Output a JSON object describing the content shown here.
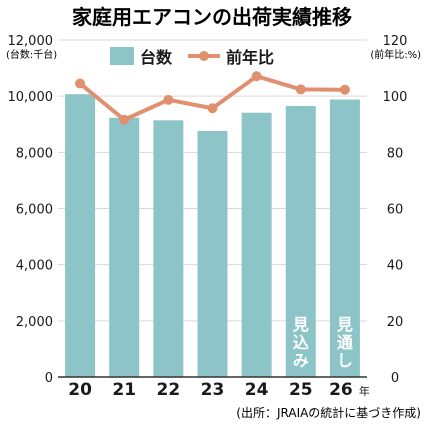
{
  "chart_data": {
    "type": "bar",
    "title": "家庭用エアコンの出荷実績推移",
    "categories": [
      "20",
      "21",
      "22",
      "23",
      "24",
      "25",
      "26"
    ],
    "category_suffix_last": "年",
    "series": [
      {
        "name": "台数",
        "kind": "bar",
        "axis": "left",
        "values": [
          10070,
          9230,
          9140,
          8760,
          9410,
          9650,
          9880
        ]
      },
      {
        "name": "前年比",
        "kind": "line",
        "axis": "right",
        "values": [
          104.5,
          91.6,
          98.7,
          95.7,
          107.1,
          102.4,
          102.3
        ]
      }
    ],
    "y_left": {
      "unit_label": "(台数:千台)",
      "ylim": [
        0,
        12000
      ],
      "ticks": [
        "0",
        "2,000",
        "4,000",
        "6,000",
        "8,000",
        "10,000",
        "12,000"
      ]
    },
    "y_right": {
      "unit_label": "(前年比:%)",
      "ylim": [
        0,
        120
      ],
      "ticks": [
        "0",
        "20",
        "40",
        "60",
        "80",
        "100",
        "120"
      ]
    },
    "bar_annotations": [
      {
        "index": 5,
        "text": "見込み"
      },
      {
        "index": 6,
        "text": "見通し"
      }
    ],
    "source": "(出所：JRAIAの統計に基づき作成)",
    "grid": true,
    "legend_position": "top-center"
  },
  "colors": {
    "bar": "#8cc4c8",
    "line": "#e0906e",
    "grid": "#d9d9d9",
    "text": "#1a1a1a",
    "annotation": "#ffffff"
  }
}
